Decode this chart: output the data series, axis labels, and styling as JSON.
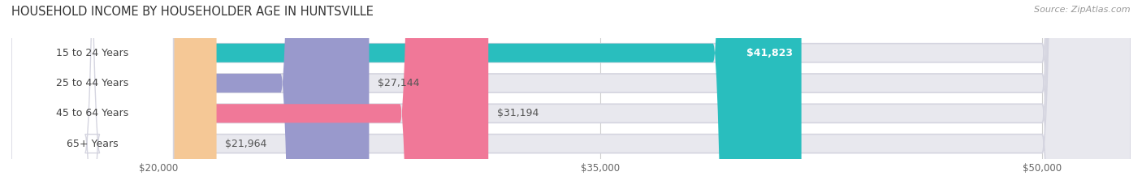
{
  "title": "HOUSEHOLD INCOME BY HOUSEHOLDER AGE IN HUNTSVILLE",
  "source": "Source: ZipAtlas.com",
  "categories": [
    "15 to 24 Years",
    "25 to 44 Years",
    "45 to 64 Years",
    "65+ Years"
  ],
  "values": [
    41823,
    27144,
    31194,
    21964
  ],
  "bar_colors": [
    "#29bebe",
    "#9999cc",
    "#f07898",
    "#f5c896"
  ],
  "bar_bg_color": "#e8e8ee",
  "value_labels": [
    "$41,823",
    "$27,144",
    "$31,194",
    "$21,964"
  ],
  "x_ticks": [
    20000,
    35000,
    50000
  ],
  "x_tick_labels": [
    "$20,000",
    "$35,000",
    "$50,000"
  ],
  "xmin": 15000,
  "xmax": 53000,
  "title_fontsize": 10.5,
  "source_fontsize": 8,
  "label_fontsize": 9,
  "tick_fontsize": 8.5,
  "background_color": "#ffffff",
  "bar_label_bg": "#ffffff",
  "grid_color": "#d0d0d0"
}
